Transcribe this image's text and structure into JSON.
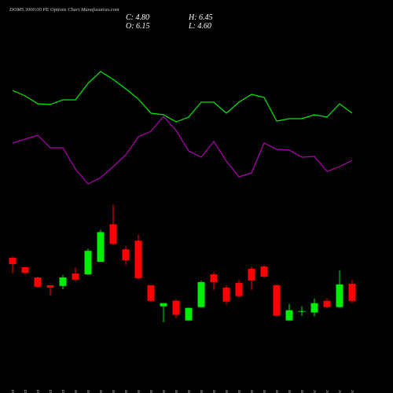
{
  "chart_data": {
    "type": "candlestick",
    "title": "DOMS 3000.00 PE Options Chart Munafasutras.com",
    "ohlc_labels": [
      "C: 4.80",
      "O: 6.15",
      "H: 6.45",
      "L: 4.60"
    ],
    "categories": [
      "27 Oct",
      "28 Oct",
      "29 Oct",
      "30 Oct",
      "31 Oct",
      "03 Nov",
      "04 Nov",
      "06 Nov",
      "07 Nov",
      "10 Nov",
      "11 Nov",
      "12 Nov",
      "13 Nov",
      "14 Nov",
      "17 Nov",
      "18 Nov",
      "19 Nov",
      "20 Nov",
      "21 Nov",
      "24 Nov",
      "25 Nov",
      "26 Nov",
      "27 Nov",
      "28 Nov",
      "01 Dec",
      "02 Dec",
      "03 Dec",
      "04 Dec"
    ],
    "open": [
      8.18,
      7.44,
      6.64,
      6.03,
      5.97,
      6.95,
      6.89,
      7.87,
      10.82,
      8.85,
      9.53,
      6.03,
      4.37,
      4.8,
      3.26,
      4.31,
      6.89,
      5.84,
      6.21,
      7.32,
      7.5,
      6.03,
      3.26,
      3.94,
      3.88,
      4.8,
      4.31,
      6.15
    ],
    "high": [
      8.3,
      7.44,
      6.7,
      6.03,
      6.83,
      7.44,
      8.91,
      10.39,
      12.35,
      9.1,
      10.02,
      6.03,
      4.62,
      4.92,
      4.25,
      6.4,
      7.07,
      6.03,
      6.46,
      7.5,
      7.62,
      6.09,
      4.55,
      4.37,
      4.98,
      4.98,
      7.19,
      6.45
    ],
    "low": [
      6.95,
      6.83,
      5.84,
      5.23,
      5.72,
      6.33,
      6.83,
      7.87,
      9.16,
      7.62,
      6.46,
      4.68,
      3.14,
      3.45,
      3.2,
      4.25,
      5.66,
      4.49,
      5.04,
      5.66,
      6.58,
      3.57,
      3.2,
      3.63,
      3.57,
      4.19,
      4.25,
      4.6
    ],
    "close": [
      7.69,
      7.01,
      5.9,
      5.84,
      6.64,
      6.46,
      8.73,
      10.2,
      9.28,
      7.99,
      6.58,
      4.8,
      4.62,
      3.7,
      4.25,
      6.27,
      6.27,
      4.74,
      5.17,
      6.4,
      6.7,
      3.63,
      4.06,
      4.0,
      4.62,
      4.31,
      6.09,
      4.8
    ],
    "ylim": [
      2.5,
      13
    ],
    "up_color": "#00ee00",
    "down_color": "#ff0000",
    "lines": [
      {
        "color": "#00ee00",
        "values": [
          135,
          128,
          118,
          117,
          123,
          123,
          144,
          159,
          149,
          137,
          124,
          106,
          104,
          95,
          101,
          120,
          120,
          106,
          120,
          130,
          126,
          96,
          99,
          99,
          104,
          101,
          118,
          106
        ]
      },
      {
        "color": "#b000b0",
        "values": [
          68,
          73,
          78,
          62,
          62,
          35,
          16,
          24,
          38,
          53,
          76,
          83,
          102,
          84,
          58,
          50,
          70,
          45,
          25,
          30,
          68,
          60,
          59,
          50,
          51,
          32,
          38,
          46
        ]
      }
    ],
    "lines_ylim": [
      0,
      200
    ]
  }
}
